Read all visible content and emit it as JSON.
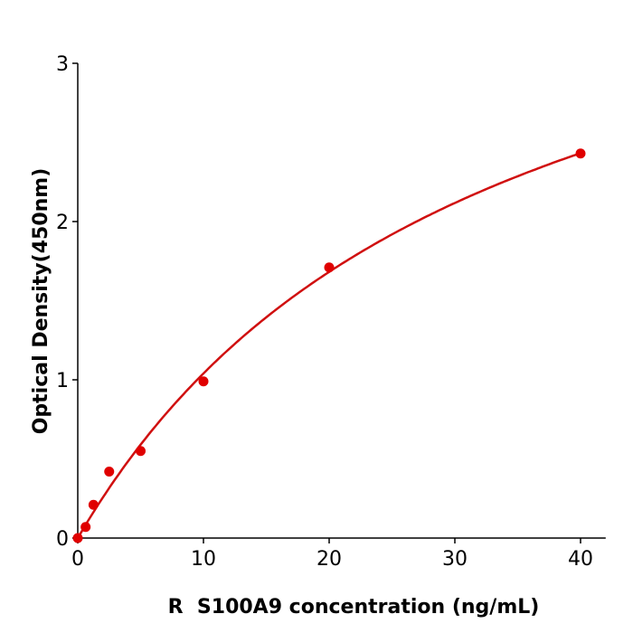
{
  "chart_data": {
    "type": "scatter",
    "title": "",
    "xlabel": "R  S100A9 concentration (ng/mL)",
    "ylabel": "Optical Density(450nm)",
    "xlim": [
      0,
      42
    ],
    "ylim": [
      0,
      3
    ],
    "xticks": [
      "0",
      "10",
      "20",
      "30",
      "40"
    ],
    "yticks": [
      "0",
      "1",
      "2",
      "3"
    ],
    "grid": false,
    "color": "#e00000",
    "curve_color": "#d01010",
    "points": [
      {
        "x": 0,
        "y": 0.0
      },
      {
        "x": 0.625,
        "y": 0.07
      },
      {
        "x": 1.25,
        "y": 0.21
      },
      {
        "x": 2.5,
        "y": 0.42
      },
      {
        "x": 5,
        "y": 0.55
      },
      {
        "x": 10,
        "y": 0.99
      },
      {
        "x": 20,
        "y": 1.71
      },
      {
        "x": 40,
        "y": 2.43
      }
    ],
    "fit_curve": true
  }
}
